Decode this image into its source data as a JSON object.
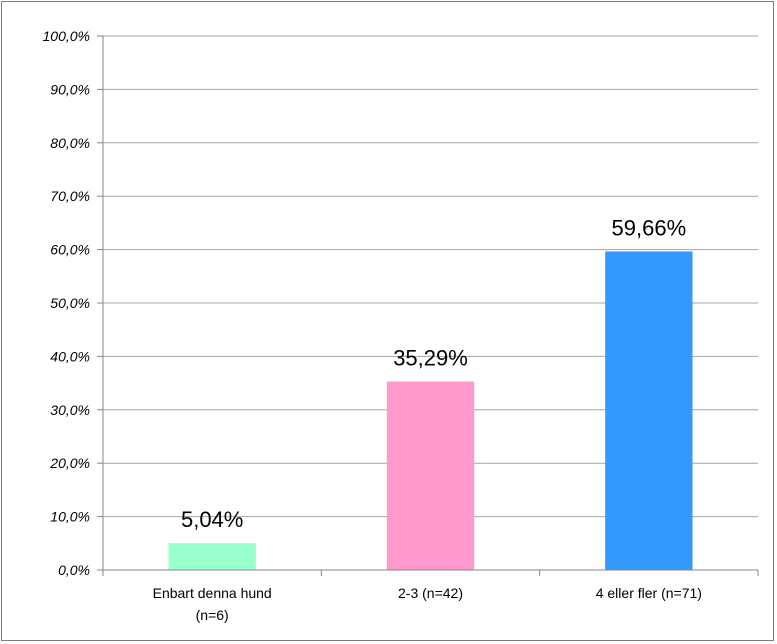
{
  "chart_data": {
    "type": "bar",
    "categories": [
      [
        "Enbart denna hund",
        "(n=6)"
      ],
      [
        "2-3 (n=42)"
      ],
      [
        "4 eller fler (n=71)"
      ]
    ],
    "values": [
      5.04,
      35.29,
      59.66
    ],
    "data_labels": [
      "5,04%",
      "35,29%",
      "59,66%"
    ],
    "colors": [
      "#99ffcc",
      "#ff99cc",
      "#3399ff"
    ],
    "ylim": [
      0,
      100
    ],
    "yticks": [
      0,
      10,
      20,
      30,
      40,
      50,
      60,
      70,
      80,
      90,
      100
    ],
    "ytick_labels": [
      "0,0%",
      "10,0%",
      "20,0%",
      "30,0%",
      "40,0%",
      "50,0%",
      "60,0%",
      "70,0%",
      "80,0%",
      "90,0%",
      "100,0%"
    ],
    "grid": true,
    "gridline_color": "#a6a6a6",
    "axis_color": "#868686",
    "legend": "none"
  }
}
